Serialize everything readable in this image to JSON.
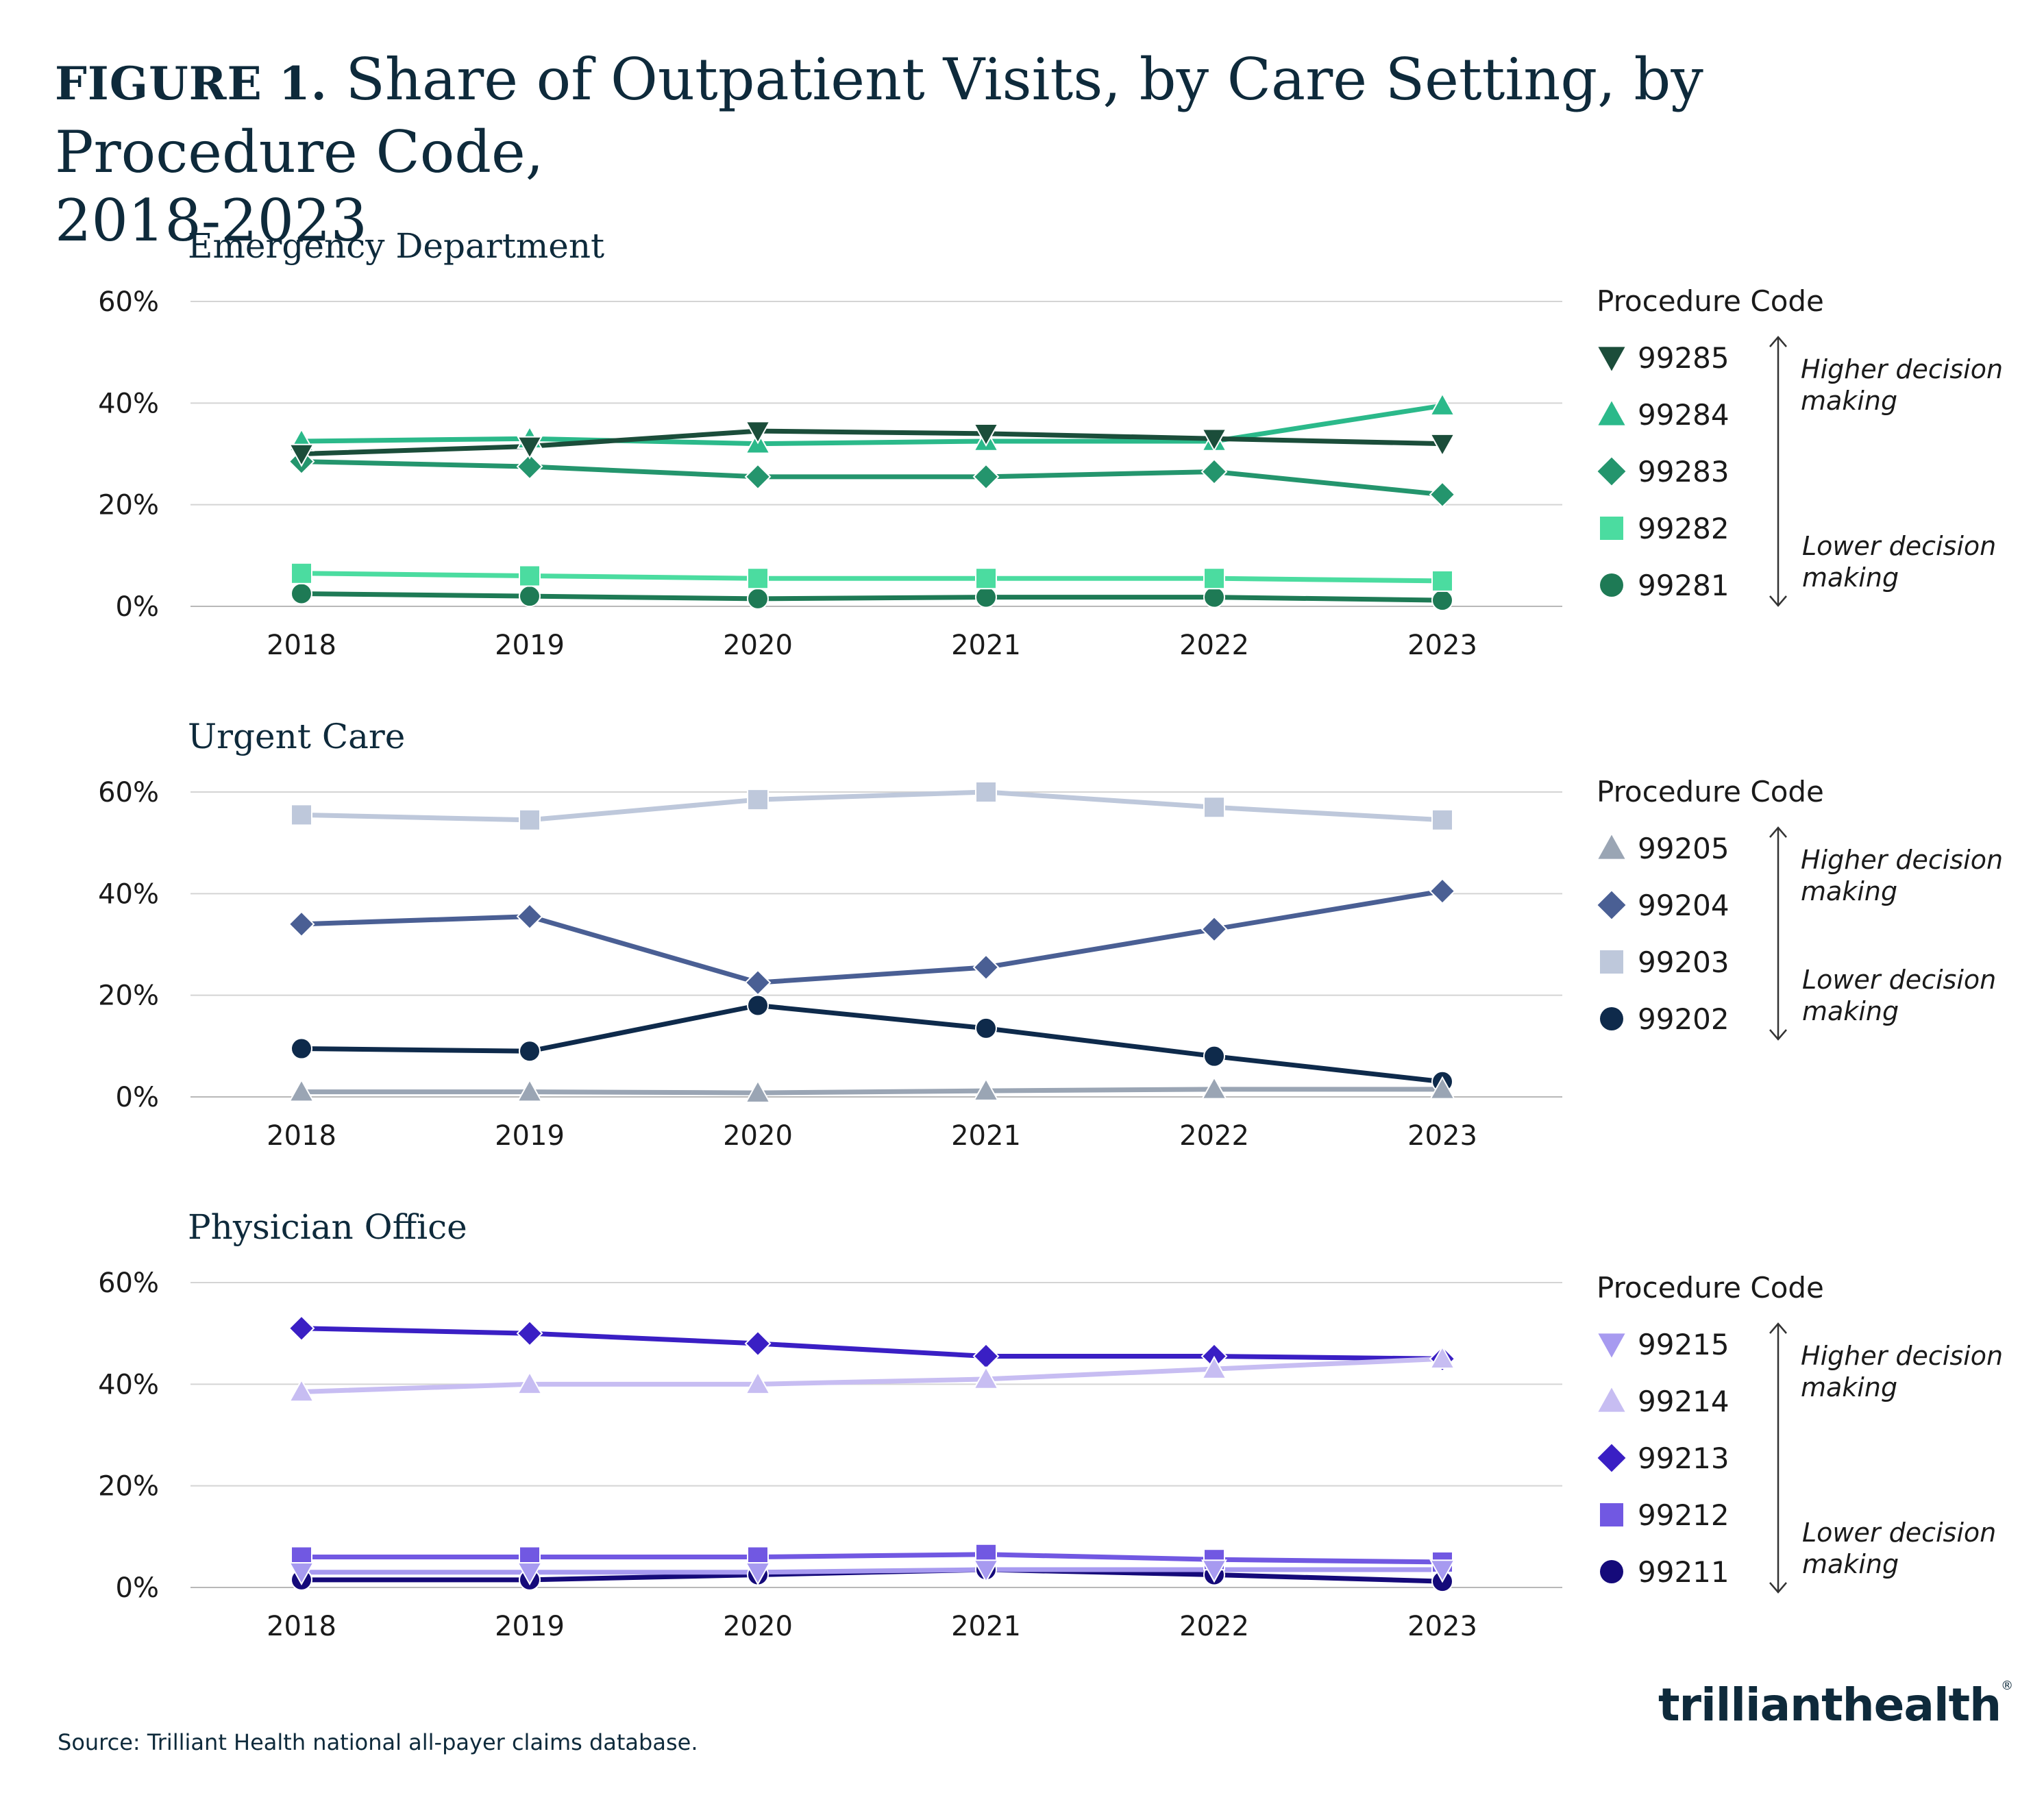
{
  "figure": {
    "label": "FIGURE 1.",
    "title_line1": "Share of Outpatient Visits, by Care Setting, by Procedure Code,",
    "title_line2": "2018-2023"
  },
  "source": "Source: Trilliant Health national all-payer claims database.",
  "logo": {
    "text": "trillianthealth",
    "mark": "®"
  },
  "legend_common": {
    "title": "Procedure Code",
    "higher": [
      "Higher decision",
      "making"
    ],
    "lower": [
      "Lower decision",
      "making"
    ]
  },
  "chart_data": [
    {
      "type": "line",
      "title": "Emergency Department",
      "x": [
        "2018",
        "2019",
        "2020",
        "2021",
        "2022",
        "2023"
      ],
      "ylim": [
        0,
        60
      ],
      "yticks": [
        "0%",
        "20%",
        "40%",
        "60%"
      ],
      "ytick_values": [
        0,
        20,
        40,
        60
      ],
      "series": [
        {
          "name": "99285",
          "marker": "triangle-down",
          "color": "#1b4d3a",
          "values": [
            30,
            31.5,
            34.5,
            34,
            33,
            32
          ]
        },
        {
          "name": "99284",
          "marker": "triangle-up",
          "color": "#2bb98a",
          "values": [
            32.5,
            33,
            32,
            32.5,
            32.5,
            39.5
          ]
        },
        {
          "name": "99283",
          "marker": "diamond",
          "color": "#24956d",
          "values": [
            28.5,
            27.5,
            25.5,
            25.5,
            26.5,
            22
          ]
        },
        {
          "name": "99282",
          "marker": "square",
          "color": "#4bdca0",
          "values": [
            6.5,
            6,
            5.5,
            5.5,
            5.5,
            5
          ]
        },
        {
          "name": "99281",
          "marker": "circle",
          "color": "#1e7a55",
          "values": [
            2.5,
            2,
            1.5,
            1.8,
            1.8,
            1.2
          ]
        }
      ]
    },
    {
      "type": "line",
      "title": "Urgent Care",
      "x": [
        "2018",
        "2019",
        "2020",
        "2021",
        "2022",
        "2023"
      ],
      "ylim": [
        0,
        60
      ],
      "yticks": [
        "0%",
        "20%",
        "40%",
        "60%"
      ],
      "ytick_values": [
        0,
        20,
        40,
        60
      ],
      "series": [
        {
          "name": "99205",
          "marker": "triangle-up",
          "color": "#9aa5b4",
          "values": [
            1,
            1,
            0.8,
            1.2,
            1.5,
            1.5
          ]
        },
        {
          "name": "99204",
          "marker": "diamond",
          "color": "#4a5f94",
          "values": [
            34,
            35.5,
            22.5,
            25.5,
            33,
            40.5
          ]
        },
        {
          "name": "99203",
          "marker": "square",
          "color": "#bec8db",
          "values": [
            55.5,
            54.5,
            58.5,
            60,
            57,
            54.5
          ]
        },
        {
          "name": "99202",
          "marker": "circle",
          "color": "#0e2a4b",
          "values": [
            9.5,
            9,
            18,
            13.5,
            8,
            3
          ]
        }
      ]
    },
    {
      "type": "line",
      "title": "Physician Office",
      "x": [
        "2018",
        "2019",
        "2020",
        "2021",
        "2022",
        "2023"
      ],
      "ylim": [
        0,
        60
      ],
      "yticks": [
        "0%",
        "20%",
        "40%",
        "60%"
      ],
      "ytick_values": [
        0,
        20,
        40,
        60
      ],
      "series": [
        {
          "name": "99215",
          "marker": "triangle-down",
          "color": "#a79af0",
          "values": [
            3,
            3,
            3,
            3.5,
            3.5,
            3.5
          ]
        },
        {
          "name": "99214",
          "marker": "triangle-up",
          "color": "#c7bdf2",
          "values": [
            38.5,
            40,
            40,
            41,
            43,
            45
          ]
        },
        {
          "name": "99213",
          "marker": "diamond",
          "color": "#3a1fc4",
          "values": [
            51,
            50,
            48,
            45.5,
            45.5,
            45
          ]
        },
        {
          "name": "99212",
          "marker": "square",
          "color": "#7158e2",
          "values": [
            6,
            6,
            6,
            6.5,
            5.5,
            5
          ]
        },
        {
          "name": "99211",
          "marker": "circle",
          "color": "#150a7a",
          "values": [
            1.5,
            1.5,
            2.5,
            3.5,
            2.5,
            1.2
          ]
        }
      ]
    }
  ]
}
